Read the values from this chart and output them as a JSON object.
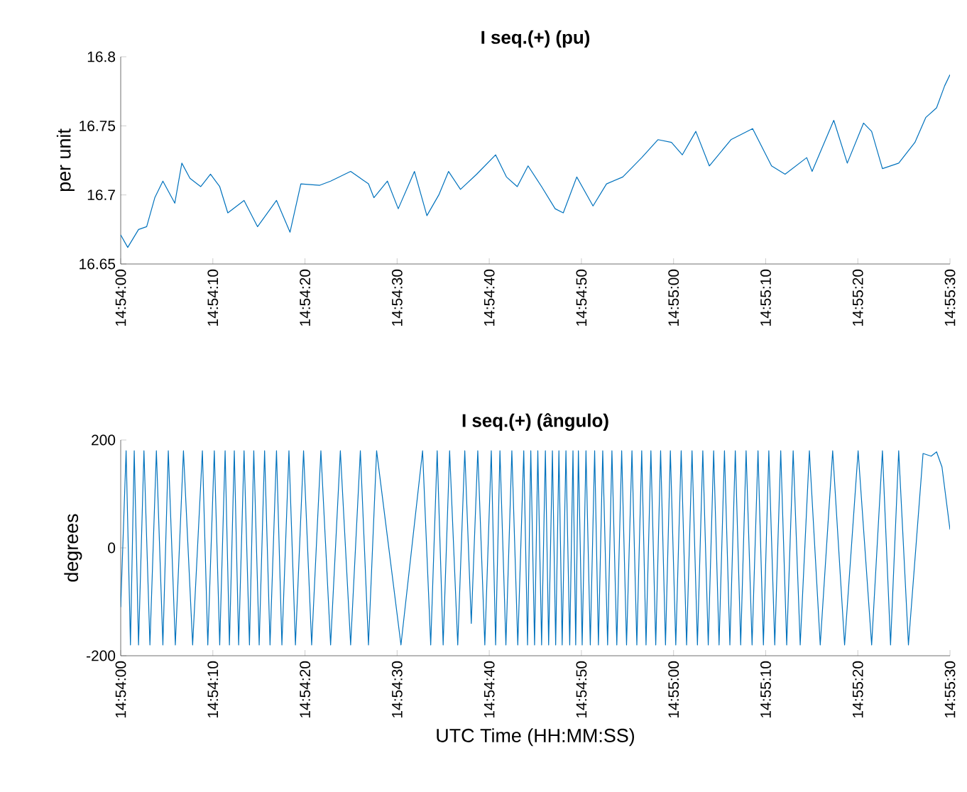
{
  "chart_data": [
    {
      "type": "line",
      "title": "I seq.(+) (pu)",
      "ylabel": "per unit",
      "color": "#0072bd",
      "x": [
        14.9,
        14.900212,
        14.900538,
        14.900783,
        14.901028,
        14.901272,
        14.901631,
        14.901843,
        14.902088,
        14.902414,
        14.902707,
        14.902985,
        14.903229,
        14.903719,
        14.904126,
        14.904697,
        14.905105,
        14.905431,
        14.906002,
        14.906328,
        14.906932,
        14.90747,
        14.907633,
        14.908041,
        14.908367,
        14.908856,
        14.909231,
        14.90959,
        14.909884,
        14.910243,
        14.910732,
        14.911303,
        14.911629,
        14.911955,
        14.912281,
        14.912689,
        14.913097,
        14.913342,
        14.913749,
        14.914239,
        14.914646,
        14.915136,
        14.915707,
        14.916196,
        14.916604,
        14.91693,
        14.917338,
        14.917745,
        14.918398,
        14.91905,
        14.919621,
        14.920029,
        14.920681,
        14.920844,
        14.921497,
        14.921904,
        14.922394,
        14.922638,
        14.922964,
        14.923454,
        14.923943,
        14.924269,
        14.924595,
        14.92484,
        14.925
      ],
      "values": [
        16.671,
        16.662,
        16.675,
        16.677,
        16.698,
        16.71,
        16.694,
        16.723,
        16.712,
        16.706,
        16.715,
        16.706,
        16.687,
        16.696,
        16.677,
        16.696,
        16.673,
        16.708,
        16.707,
        16.71,
        16.717,
        16.708,
        16.698,
        16.71,
        16.69,
        16.717,
        16.685,
        16.7,
        16.717,
        16.704,
        16.715,
        16.729,
        16.713,
        16.706,
        16.721,
        16.706,
        16.69,
        16.687,
        16.713,
        16.692,
        16.708,
        16.713,
        16.727,
        16.74,
        16.738,
        16.729,
        16.746,
        16.721,
        16.74,
        16.748,
        16.721,
        16.715,
        16.727,
        16.717,
        16.754,
        16.723,
        16.752,
        16.746,
        16.719,
        16.723,
        16.738,
        16.756,
        16.763,
        16.779,
        16.787
      ],
      "xlim": [
        14.9,
        14.925
      ],
      "ylim": [
        16.65,
        16.8
      ],
      "xticks": [
        {
          "value": 14.9,
          "label": "14:54:00"
        },
        {
          "value": 14.902778,
          "label": "14:54:10"
        },
        {
          "value": 14.905556,
          "label": "14:54:20"
        },
        {
          "value": 14.908333,
          "label": "14:54:30"
        },
        {
          "value": 14.911111,
          "label": "14:54:40"
        },
        {
          "value": 14.913889,
          "label": "14:54:50"
        },
        {
          "value": 14.916667,
          "label": "14:55:00"
        },
        {
          "value": 14.919444,
          "label": "14:55:10"
        },
        {
          "value": 14.922222,
          "label": "14:55:20"
        },
        {
          "value": 14.925,
          "label": "14:55:30"
        }
      ],
      "yticks": [
        16.65,
        16.7,
        16.75,
        16.8
      ]
    },
    {
      "type": "line",
      "title": "I seq.(+) (ângulo)",
      "ylabel": "degrees",
      "xlabel": "UTC Time (HH:MM:SS)",
      "color": "#0072bd",
      "x": [
        14.9,
        14.900163,
        14.900294,
        14.900408,
        14.900538,
        14.900701,
        14.900881,
        14.901076,
        14.901272,
        14.901435,
        14.901647,
        14.901892,
        14.902169,
        14.902463,
        14.902626,
        14.902822,
        14.902985,
        14.903148,
        14.903278,
        14.903425,
        14.903556,
        14.903719,
        14.903882,
        14.904012,
        14.904175,
        14.904338,
        14.904502,
        14.904697,
        14.90486,
        14.905072,
        14.905268,
        14.905513,
        14.905757,
        14.906035,
        14.906328,
        14.906622,
        14.906932,
        14.907225,
        14.90747,
        14.907715,
        14.908449,
        14.909101,
        14.909346,
        14.909541,
        14.909721,
        14.909916,
        14.910161,
        14.910373,
        14.910569,
        14.910765,
        14.910977,
        14.911172,
        14.911303,
        14.911433,
        14.911613,
        14.911792,
        14.911971,
        14.912151,
        14.912265,
        14.912363,
        14.912477,
        14.912575,
        14.912689,
        14.912803,
        14.912901,
        14.913015,
        14.913113,
        14.913211,
        14.913309,
        14.913423,
        14.913537,
        14.913635,
        14.913717,
        14.913798,
        14.913912,
        14.914027,
        14.914157,
        14.914288,
        14.914402,
        14.914532,
        14.914679,
        14.914809,
        14.914956,
        14.915103,
        14.91525,
        14.915413,
        14.91556,
        14.915707,
        14.915837,
        14.915984,
        14.91613,
        14.916277,
        14.916424,
        14.916571,
        14.916734,
        14.916897,
        14.91706,
        14.917224,
        14.917387,
        14.917549,
        14.917713,
        14.917876,
        14.918039,
        14.918202,
        14.918365,
        14.918528,
        14.918691,
        14.918854,
        14.919034,
        14.919213,
        14.919376,
        14.919539,
        14.919718,
        14.919898,
        14.920078,
        14.920273,
        14.920485,
        14.920762,
        14.921089,
        14.921464,
        14.921823,
        14.922231,
        14.922639,
        14.922964,
        14.923209,
        14.923454,
        14.923748,
        14.924188,
        14.924433,
        14.924596,
        14.924759,
        14.925
      ],
      "values": [
        -110,
        180,
        -180,
        180,
        -180,
        180,
        -180,
        180,
        -180,
        180,
        -180,
        180,
        -180,
        180,
        -180,
        180,
        -180,
        180,
        -180,
        180,
        -180,
        180,
        -180,
        180,
        -180,
        180,
        -180,
        180,
        -180,
        180,
        -180,
        180,
        -180,
        180,
        -180,
        180,
        -180,
        180,
        -180,
        180,
        -180,
        180,
        -180,
        180,
        -180,
        180,
        -180,
        180,
        -140,
        180,
        -180,
        180,
        -180,
        180,
        -180,
        180,
        -180,
        180,
        -180,
        180,
        -180,
        180,
        -180,
        180,
        -180,
        180,
        -180,
        180,
        -180,
        180,
        -180,
        180,
        -180,
        180,
        -180,
        180,
        -180,
        180,
        -180,
        180,
        -180,
        180,
        -180,
        180,
        -180,
        180,
        -180,
        180,
        -180,
        180,
        -180,
        180,
        -180,
        180,
        -180,
        180,
        -180,
        180,
        -180,
        180,
        -180,
        180,
        -180,
        180,
        -180,
        180,
        -180,
        180,
        -180,
        180,
        -180,
        180,
        -180,
        180,
        -180,
        180,
        -180,
        180,
        -180,
        180,
        -180,
        180,
        -180,
        180,
        -180,
        180,
        -180,
        175,
        170,
        178,
        150,
        34
      ],
      "xlim": [
        14.9,
        14.925
      ],
      "ylim": [
        -200,
        200
      ],
      "xticks": [
        {
          "value": 14.9,
          "label": "14:54:00"
        },
        {
          "value": 14.902778,
          "label": "14:54:10"
        },
        {
          "value": 14.905556,
          "label": "14:54:20"
        },
        {
          "value": 14.908333,
          "label": "14:54:30"
        },
        {
          "value": 14.911111,
          "label": "14:54:40"
        },
        {
          "value": 14.913889,
          "label": "14:54:50"
        },
        {
          "value": 14.916667,
          "label": "14:55:00"
        },
        {
          "value": 14.919444,
          "label": "14:55:10"
        },
        {
          "value": 14.922222,
          "label": "14:55:20"
        },
        {
          "value": 14.925,
          "label": "14:55:30"
        }
      ],
      "yticks": [
        -200,
        0,
        200
      ]
    }
  ]
}
